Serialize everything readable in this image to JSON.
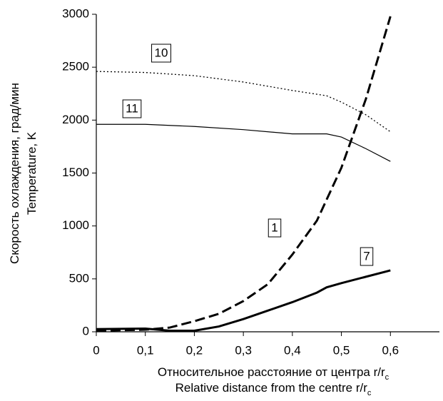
{
  "chart_data": {
    "type": "line",
    "ylabel": [
      "Скорость охлаждения, град/мин",
      "Temperature, K"
    ],
    "xlabel": [
      {
        "text": "Относительное расстояние от центра r/r",
        "subscript": "c"
      },
      {
        "text": "Relative distance from the centre r/r",
        "subscript": "c"
      }
    ],
    "xlim": [
      0,
      0.7
    ],
    "ylim": [
      0,
      3000
    ],
    "xticks": [
      {
        "value": 0,
        "label": "0"
      },
      {
        "value": 0.1,
        "label": "0,1"
      },
      {
        "value": 0.2,
        "label": "0,2"
      },
      {
        "value": 0.3,
        "label": "0,3"
      },
      {
        "value": 0.4,
        "label": "0,4"
      },
      {
        "value": 0.5,
        "label": "0,5"
      },
      {
        "value": 0.6,
        "label": "0,6"
      }
    ],
    "yticks": [
      0,
      500,
      1000,
      1500,
      2000,
      2500,
      3000
    ],
    "grid": false,
    "series": [
      {
        "name": "10",
        "color": "#000000",
        "style": "dotted",
        "x": [
          0,
          0.1,
          0.2,
          0.3,
          0.4,
          0.47,
          0.5,
          0.55,
          0.6
        ],
        "values": [
          2460,
          2450,
          2420,
          2360,
          2280,
          2230,
          2170,
          2050,
          1890
        ]
      },
      {
        "name": "11",
        "color": "#000000",
        "style": "solid",
        "x": [
          0,
          0.1,
          0.2,
          0.3,
          0.4,
          0.47,
          0.5,
          0.55,
          0.6
        ],
        "values": [
          1960,
          1960,
          1940,
          1910,
          1870,
          1870,
          1840,
          1730,
          1610
        ]
      },
      {
        "name": "1",
        "color": "#000000",
        "style": "dashed",
        "x": [
          0,
          0.1,
          0.15,
          0.2,
          0.25,
          0.3,
          0.35,
          0.4,
          0.45,
          0.5,
          0.55,
          0.6
        ],
        "values": [
          10,
          20,
          40,
          100,
          170,
          290,
          450,
          730,
          1050,
          1550,
          2200,
          2980
        ]
      },
      {
        "name": "7",
        "color": "#000000",
        "style": "thick",
        "x": [
          0,
          0.1,
          0.15,
          0.2,
          0.25,
          0.3,
          0.35,
          0.4,
          0.45,
          0.47,
          0.5,
          0.55,
          0.6
        ],
        "values": [
          25,
          30,
          10,
          10,
          50,
          120,
          200,
          280,
          370,
          420,
          460,
          520,
          580
        ]
      }
    ]
  }
}
